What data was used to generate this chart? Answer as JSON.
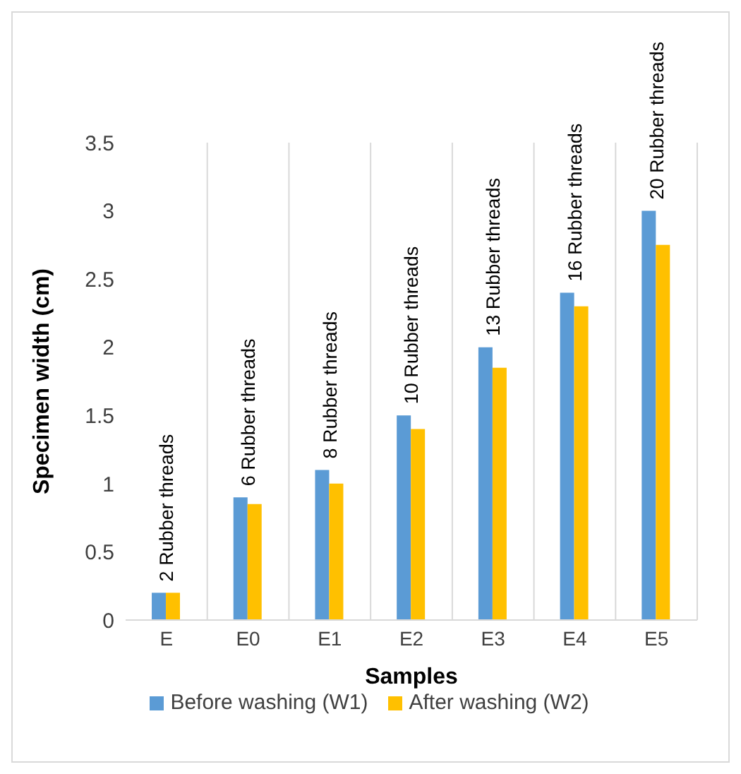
{
  "chart_data": {
    "type": "bar",
    "xlabel": "Samples",
    "ylabel": "Specimen width (cm)",
    "categories": [
      "E",
      "E0",
      "E1",
      "E2",
      "E3",
      "E4",
      "E5"
    ],
    "series": [
      {
        "name": "Before washing (W1)",
        "color": "#5b9bd5",
        "values": [
          0.2,
          0.9,
          1.1,
          1.5,
          2.0,
          2.4,
          3.0
        ]
      },
      {
        "name": "After washing (W2)",
        "color": "#ffc000",
        "values": [
          0.2,
          0.85,
          1.0,
          1.4,
          1.85,
          2.3,
          2.75
        ]
      }
    ],
    "ylim": [
      0,
      3.5
    ],
    "yticks": [
      0,
      0.5,
      1,
      1.5,
      2,
      2.5,
      3,
      3.5
    ],
    "grid": "x",
    "legend": "bottom",
    "annotations": [
      {
        "text": "2 Rubber threads",
        "x": "E",
        "y": 0.2
      },
      {
        "text": "6 Rubber threads",
        "x": "E0",
        "y": 0.9
      },
      {
        "text": "8 Rubber threads",
        "x": "E1",
        "y": 1.1
      },
      {
        "text": "10 Rubber threads",
        "x": "E2",
        "y": 1.5
      },
      {
        "text": "13 Rubber threads",
        "x": "E3",
        "y": 2.0
      },
      {
        "text": "16 Rubber threads",
        "x": "E4",
        "y": 2.4
      },
      {
        "text": "20 Rubber threads",
        "x": "E5",
        "y": 3.0
      }
    ]
  }
}
